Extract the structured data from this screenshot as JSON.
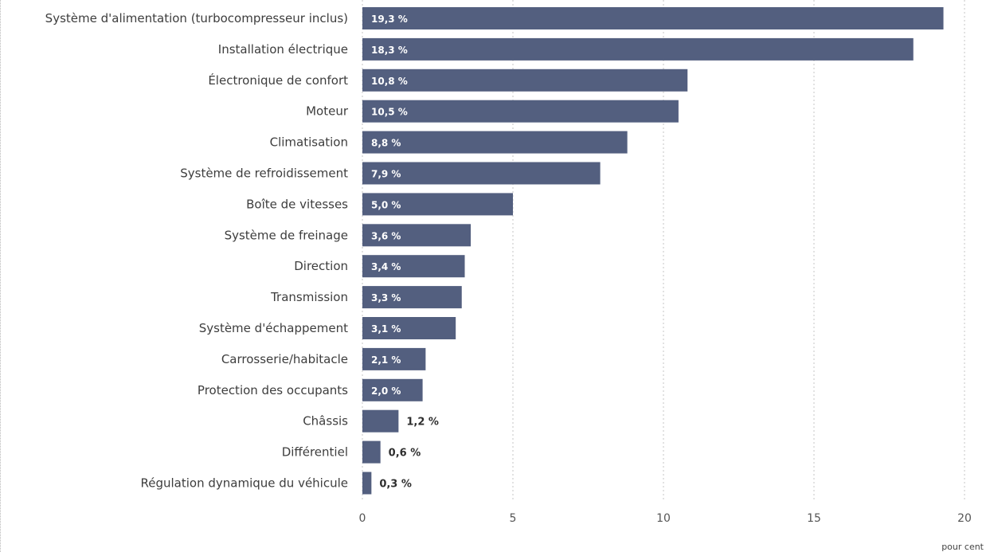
{
  "chart_data": {
    "type": "bar",
    "orientation": "horizontal",
    "categories": [
      "Système d'alimentation (turbocompresseur inclus)",
      "Installation électrique",
      "Électronique de confort",
      "Moteur",
      "Climatisation",
      "Système de refroidissement",
      "Boîte de vitesses",
      "Système de freinage",
      "Direction",
      "Transmission",
      "Système d'échappement",
      "Carrosserie/habitacle",
      "Protection des occupants",
      "Châssis",
      "Différentiel",
      "Régulation dynamique du véhicule"
    ],
    "values": [
      19.3,
      18.3,
      10.8,
      10.5,
      8.8,
      7.9,
      5.0,
      3.6,
      3.4,
      3.3,
      3.1,
      2.1,
      2.0,
      1.2,
      0.6,
      0.3
    ],
    "value_labels": [
      "19,3 %",
      "18,3 %",
      "10,8 %",
      "10,5 %",
      "8,8 %",
      "7,9 %",
      "5,0 %",
      "3,6 %",
      "3,4 %",
      "3,3 %",
      "3,1 %",
      "2,1 %",
      "2,0 %",
      "1,2 %",
      "0,6 %",
      "0,3 %"
    ],
    "xlabel": "pour cent",
    "xlim": [
      0,
      20
    ],
    "xticks": [
      0,
      5,
      10,
      15,
      20
    ],
    "xtick_labels": [
      "0",
      "5",
      "10",
      "15",
      "20"
    ],
    "grid": "vertical dotted",
    "bar_color": "#535f7f"
  }
}
